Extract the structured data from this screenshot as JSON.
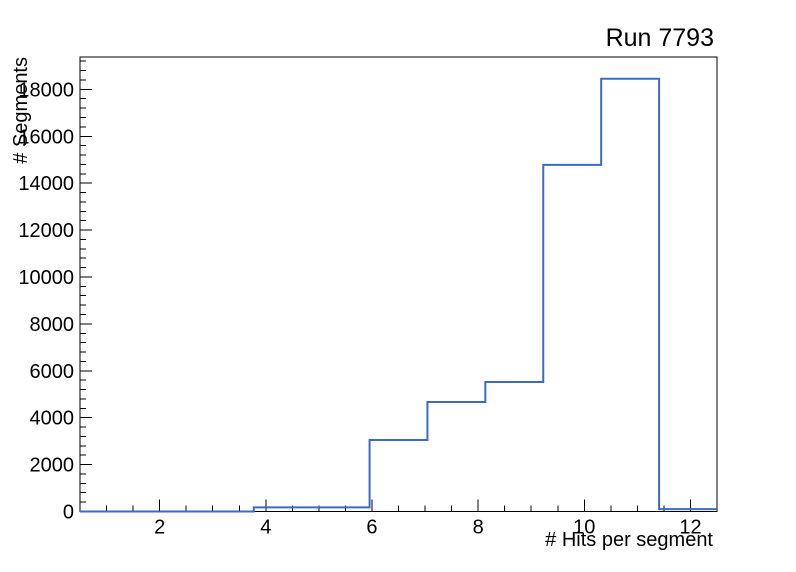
{
  "chart_data": {
    "type": "histogram-step",
    "title": "Run 7793",
    "xlabel": "# Hits per segment",
    "ylabel": "# Segments",
    "x_min": 0.5,
    "x_max": 12.5,
    "y_min": 0,
    "y_max": 19380,
    "n_bins": 11,
    "bin_edges": [
      0.5,
      1.591,
      2.682,
      3.773,
      4.864,
      5.955,
      7.045,
      8.136,
      9.227,
      10.318,
      11.409,
      12.5
    ],
    "bin_values": [
      0,
      0,
      0,
      175,
      175,
      3050,
      4670,
      5520,
      14780,
      18450,
      100
    ],
    "x_major_ticks": [
      2,
      4,
      6,
      8,
      10,
      12
    ],
    "x_minor_tick_step": 0.5,
    "y_major_ticks": [
      0,
      2000,
      4000,
      6000,
      8000,
      10000,
      12000,
      14000,
      16000,
      18000
    ],
    "y_minor_tick_step": 400,
    "grid": false,
    "legend": "none",
    "line_color": "#3b6bc5",
    "axis_color": "#000000",
    "text_color": "#000000",
    "background_color": "#ffffff"
  }
}
